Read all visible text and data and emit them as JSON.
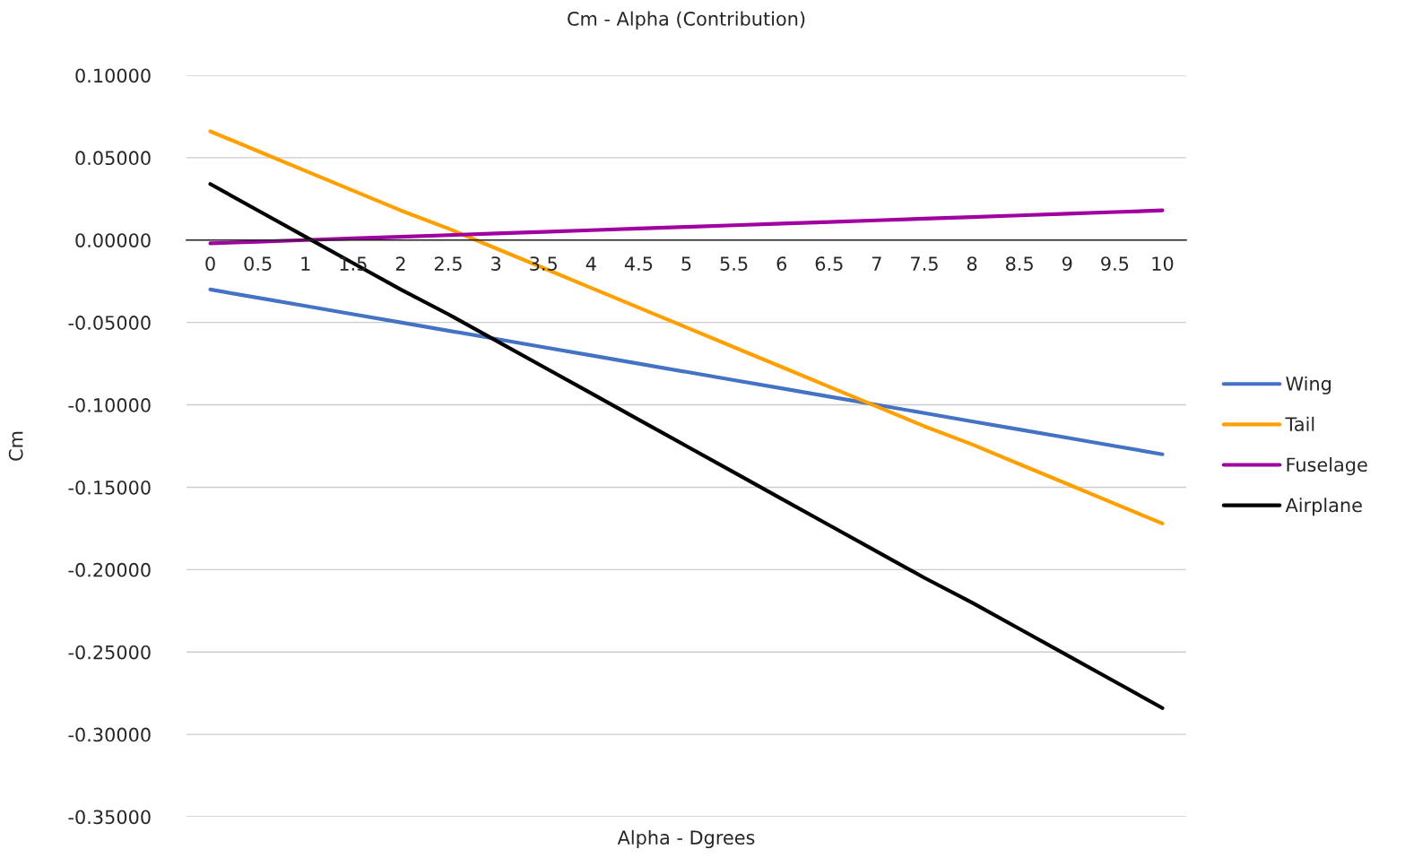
{
  "chart_data": {
    "type": "line",
    "title": "Cm - Alpha (Contribution)",
    "xlabel": "Alpha - Dgrees",
    "ylabel": "Cm",
    "categories": [
      "0",
      "0.5",
      "1",
      "1.5",
      "2",
      "2.5",
      "3",
      "3.5",
      "4",
      "4.5",
      "5",
      "5.5",
      "6",
      "6.5",
      "7",
      "7.5",
      "8",
      "8.5",
      "9",
      "9.5",
      "10"
    ],
    "series": [
      {
        "name": "Wing",
        "color": "#4472c4",
        "values": [
          -0.03,
          -0.035,
          -0.04,
          -0.045,
          -0.05,
          -0.055,
          -0.06,
          -0.065,
          -0.07,
          -0.075,
          -0.08,
          -0.085,
          -0.09,
          -0.095,
          -0.1,
          -0.105,
          -0.11,
          -0.115,
          -0.12,
          -0.125,
          -0.13
        ]
      },
      {
        "name": "Tail",
        "color": "#ffa000",
        "values": [
          0.066,
          0.054,
          0.042,
          0.03,
          0.018,
          0.007,
          -0.005,
          -0.017,
          -0.029,
          -0.041,
          -0.053,
          -0.065,
          -0.077,
          -0.089,
          -0.101,
          -0.113,
          -0.124,
          -0.136,
          -0.148,
          -0.16,
          -0.172
        ]
      },
      {
        "name": "Fuselage",
        "color": "#a000a0",
        "values": [
          -0.002,
          -0.001,
          0.0,
          0.001,
          0.002,
          0.003,
          0.004,
          0.005,
          0.006,
          0.007,
          0.008,
          0.009,
          0.01,
          0.011,
          0.012,
          0.013,
          0.014,
          0.015,
          0.016,
          0.017,
          0.018
        ]
      },
      {
        "name": "Airplane",
        "color": "#000000",
        "values": [
          0.034,
          0.018,
          0.002,
          -0.014,
          -0.03,
          -0.045,
          -0.061,
          -0.077,
          -0.093,
          -0.109,
          -0.125,
          -0.141,
          -0.157,
          -0.173,
          -0.189,
          -0.205,
          -0.22,
          -0.236,
          -0.252,
          -0.268,
          -0.284
        ]
      }
    ],
    "ylim": [
      -0.35,
      0.1
    ],
    "yticks": [
      {
        "value": -0.35,
        "label": "-0.35000"
      },
      {
        "value": -0.3,
        "label": "-0.30000"
      },
      {
        "value": -0.25,
        "label": "-0.25000"
      },
      {
        "value": -0.2,
        "label": "-0.20000"
      },
      {
        "value": -0.15,
        "label": "-0.15000"
      },
      {
        "value": -0.1,
        "label": "-0.10000"
      },
      {
        "value": -0.05,
        "label": "-0.05000"
      },
      {
        "value": 0,
        "label": "0.00000"
      },
      {
        "value": 0.05,
        "label": "0.05000"
      },
      {
        "value": 0.1,
        "label": "0.10000"
      }
    ],
    "grid": "y",
    "legend": "right",
    "marker": "none",
    "line_style": "solid"
  }
}
